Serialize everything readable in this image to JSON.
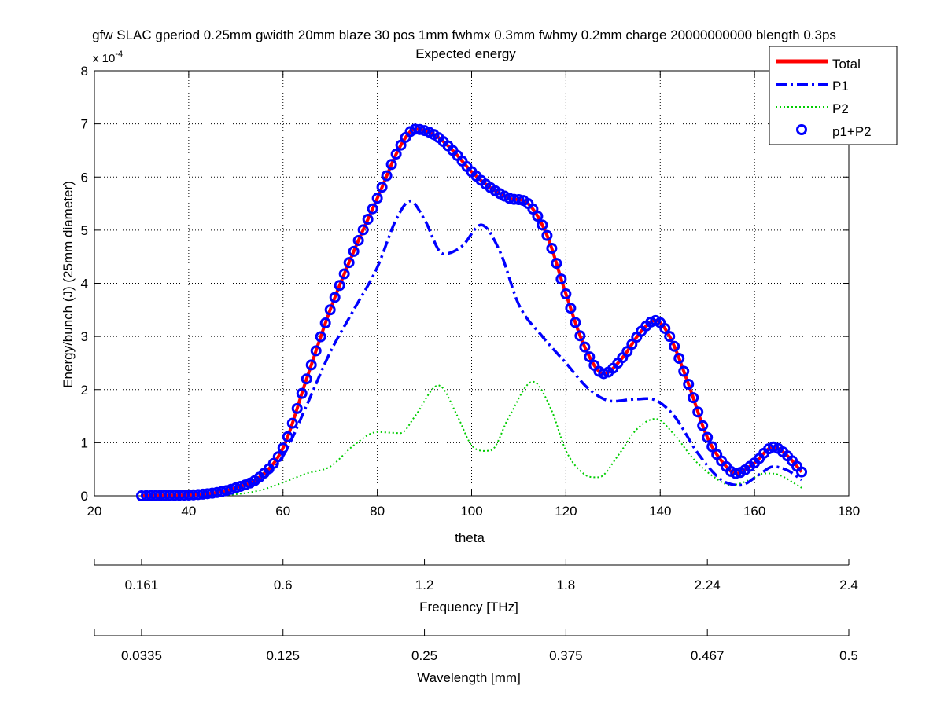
{
  "chart_data": {
    "type": "line",
    "title": "gfw SLAC gperiod 0.25mm gwidth 20mm blaze 30 pos 1mm fwhmx 0.3mm fwhmy 0.2mm charge 20000000000 blength 0.3ps",
    "subtitle": "Expected energy",
    "xlabel": "theta",
    "ylabel": "Energy/bunch (J) (25mm diameter)",
    "y_multiplier_base": "x 10",
    "y_multiplier_exp": "-4",
    "xlim": [
      20,
      180
    ],
    "ylim": [
      0,
      8
    ],
    "x_ticks": [
      20,
      40,
      60,
      80,
      100,
      120,
      140,
      160,
      180
    ],
    "y_ticks": [
      0,
      1,
      2,
      3,
      4,
      5,
      6,
      7,
      8
    ],
    "grid": true,
    "legend_position": "top-right",
    "legend": [
      "Total",
      "P1",
      "P2",
      "p1+P2"
    ],
    "colors": {
      "total": "#ff0000",
      "p1": "#0000ff",
      "p2": "#00cc00",
      "p1p2": "#0000ff"
    },
    "series": [
      {
        "name": "Total",
        "x": [
          30,
          45,
          50,
          55,
          60,
          65,
          70,
          75,
          80,
          85,
          88,
          92,
          96,
          100,
          104,
          108,
          112,
          116,
          120,
          124,
          128,
          132,
          136,
          139,
          142,
          146,
          150,
          154,
          156,
          160,
          164,
          167,
          170
        ],
        "values": [
          0,
          0.05,
          0.15,
          0.35,
          0.9,
          2.2,
          3.5,
          4.6,
          5.6,
          6.6,
          6.9,
          6.8,
          6.5,
          6.1,
          5.8,
          5.6,
          5.5,
          4.9,
          3.8,
          2.8,
          2.3,
          2.6,
          3.1,
          3.3,
          3.0,
          2.1,
          1.1,
          0.55,
          0.42,
          0.62,
          0.92,
          0.75,
          0.45
        ]
      },
      {
        "name": "P1",
        "x": [
          30,
          45,
          50,
          55,
          60,
          65,
          70,
          75,
          80,
          84,
          87,
          90,
          94,
          98,
          102,
          106,
          110,
          115,
          120,
          125,
          130,
          135,
          139,
          143,
          148,
          153,
          157,
          161,
          164,
          167,
          170
        ],
        "values": [
          0,
          0.03,
          0.12,
          0.3,
          0.75,
          1.7,
          2.7,
          3.5,
          4.3,
          5.2,
          5.55,
          5.2,
          4.55,
          4.7,
          5.1,
          4.6,
          3.6,
          3.0,
          2.5,
          2.0,
          1.78,
          1.82,
          1.8,
          1.5,
          0.8,
          0.3,
          0.2,
          0.4,
          0.55,
          0.48,
          0.3
        ]
      },
      {
        "name": "P2",
        "x": [
          30,
          45,
          50,
          55,
          60,
          65,
          70,
          75,
          80,
          85,
          88,
          93,
          97,
          100,
          104,
          108,
          113,
          117,
          120,
          124,
          127,
          131,
          135,
          139,
          143,
          147,
          151,
          155,
          159,
          162,
          165,
          170
        ],
        "values": [
          0,
          0.01,
          0.03,
          0.1,
          0.25,
          0.42,
          0.55,
          0.95,
          1.2,
          1.18,
          1.5,
          2.08,
          1.5,
          0.95,
          0.85,
          1.5,
          2.15,
          1.6,
          0.85,
          0.4,
          0.35,
          0.75,
          1.25,
          1.45,
          1.15,
          0.7,
          0.38,
          0.2,
          0.3,
          0.42,
          0.4,
          0.15
        ]
      },
      {
        "name": "p1+P2",
        "x": [
          30,
          45,
          50,
          55,
          60,
          65,
          70,
          75,
          80,
          85,
          88,
          92,
          96,
          100,
          104,
          108,
          112,
          116,
          120,
          124,
          128,
          132,
          136,
          139,
          142,
          146,
          150,
          154,
          156,
          160,
          164,
          167,
          170
        ],
        "values": [
          0,
          0.05,
          0.15,
          0.35,
          0.9,
          2.2,
          3.5,
          4.6,
          5.6,
          6.6,
          6.9,
          6.8,
          6.5,
          6.1,
          5.8,
          5.6,
          5.5,
          4.9,
          3.8,
          2.8,
          2.3,
          2.6,
          3.1,
          3.3,
          3.0,
          2.1,
          1.1,
          0.55,
          0.42,
          0.62,
          0.92,
          0.75,
          0.45
        ]
      }
    ],
    "secondary_axes": [
      {
        "label": "Frequency [THz]",
        "ticks": [
          {
            "theta": 20,
            "label": ""
          },
          {
            "theta": 30,
            "label": "0.161"
          },
          {
            "theta": 60,
            "label": "0.6"
          },
          {
            "theta": 90,
            "label": "1.2"
          },
          {
            "theta": 120,
            "label": "1.8"
          },
          {
            "theta": 150,
            "label": "2.24"
          },
          {
            "theta": 180,
            "label": "2.4"
          }
        ]
      },
      {
        "label": "Wavelength [mm]",
        "ticks": [
          {
            "theta": 20,
            "label": ""
          },
          {
            "theta": 30,
            "label": "0.0335"
          },
          {
            "theta": 60,
            "label": "0.125"
          },
          {
            "theta": 90,
            "label": "0.25"
          },
          {
            "theta": 120,
            "label": "0.375"
          },
          {
            "theta": 150,
            "label": "0.467"
          },
          {
            "theta": 180,
            "label": "0.5"
          }
        ]
      }
    ]
  }
}
